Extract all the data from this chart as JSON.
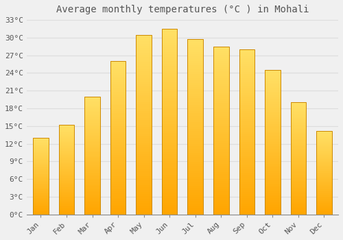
{
  "title": "Average monthly temperatures (°C ) in Mohali",
  "months": [
    "Jan",
    "Feb",
    "Mar",
    "Apr",
    "May",
    "Jun",
    "Jul",
    "Aug",
    "Sep",
    "Oct",
    "Nov",
    "Dec"
  ],
  "values": [
    13.0,
    15.2,
    20.0,
    26.0,
    30.5,
    31.5,
    29.8,
    28.5,
    28.0,
    24.5,
    19.0,
    14.2
  ],
  "bar_color_bottom": "#FFA500",
  "bar_color_top": "#FFE066",
  "bar_edge_color": "#CC8800",
  "background_color": "#f0f0f0",
  "grid_color": "#dddddd",
  "text_color": "#555555",
  "ylim": [
    0,
    33
  ],
  "yticks": [
    0,
    3,
    6,
    9,
    12,
    15,
    18,
    21,
    24,
    27,
    30,
    33
  ],
  "ytick_labels": [
    "0°C",
    "3°C",
    "6°C",
    "9°C",
    "12°C",
    "15°C",
    "18°C",
    "21°C",
    "24°C",
    "27°C",
    "30°C",
    "33°C"
  ],
  "title_fontsize": 10,
  "tick_fontsize": 8,
  "font_family": "monospace",
  "bar_width": 0.6,
  "figsize": [
    5.0,
    3.5
  ],
  "dpi": 100
}
